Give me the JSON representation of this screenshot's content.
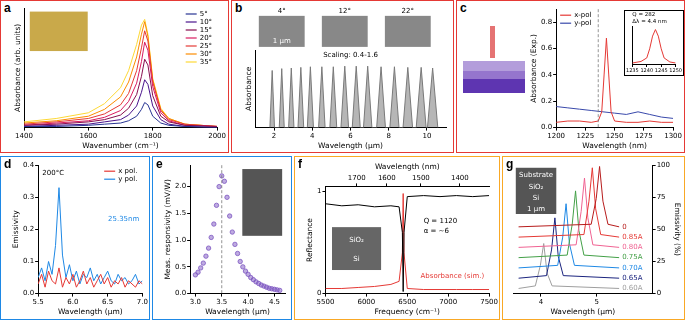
{
  "chart_data": [
    {
      "title": "a",
      "type": "line",
      "x_label": "Wavenumber (cm⁻¹)",
      "y_label": "Absorbance (arb. units)",
      "x": [
        1400,
        1500,
        1600,
        1650,
        1700,
        1725,
        1750,
        1765,
        1775,
        1785,
        1800,
        1825,
        1850,
        1900,
        2000
      ],
      "series": [
        {
          "name": "5°",
          "color": "#283593",
          "values": [
            0.01,
            0.01,
            0.02,
            0.03,
            0.04,
            0.06,
            0.1,
            0.16,
            0.22,
            0.2,
            0.1,
            0.04,
            0.02,
            0.01,
            0
          ]
        },
        {
          "name": "10°",
          "color": "#4a148c",
          "values": [
            0.01,
            0.02,
            0.03,
            0.05,
            0.07,
            0.11,
            0.19,
            0.31,
            0.42,
            0.38,
            0.19,
            0.07,
            0.03,
            0.01,
            0
          ]
        },
        {
          "name": "15°",
          "color": "#880e4f",
          "values": [
            0.02,
            0.03,
            0.05,
            0.07,
            0.11,
            0.17,
            0.29,
            0.45,
            0.6,
            0.55,
            0.28,
            0.1,
            0.05,
            0.02,
            0.01
          ]
        },
        {
          "name": "20°",
          "color": "#d81b60",
          "values": [
            0.02,
            0.04,
            0.06,
            0.09,
            0.15,
            0.23,
            0.39,
            0.58,
            0.75,
            0.68,
            0.36,
            0.13,
            0.06,
            0.02,
            0.01
          ]
        },
        {
          "name": "25°",
          "color": "#e53935",
          "values": [
            0.03,
            0.05,
            0.08,
            0.12,
            0.2,
            0.3,
            0.5,
            0.7,
            0.85,
            0.76,
            0.4,
            0.15,
            0.07,
            0.03,
            0.01
          ]
        },
        {
          "name": "30°",
          "color": "#fb8c00",
          "values": [
            0.04,
            0.06,
            0.1,
            0.16,
            0.27,
            0.4,
            0.62,
            0.82,
            0.93,
            0.8,
            0.42,
            0.16,
            0.08,
            0.03,
            0.01
          ]
        },
        {
          "name": "35°",
          "color": "#fdd835",
          "values": [
            0.05,
            0.08,
            0.13,
            0.21,
            0.35,
            0.5,
            0.73,
            0.9,
            0.95,
            0.82,
            0.43,
            0.17,
            0.08,
            0.03,
            0.01
          ]
        }
      ],
      "xlim": [
        1400,
        2000
      ],
      "xticks": [
        1400,
        1600,
        1800,
        2000
      ],
      "ylim": [
        0,
        1.05
      ],
      "tick_labels": "x",
      "grid": false,
      "legend": "upper right"
    },
    {
      "title": "b",
      "type": "area",
      "x_label": "Wavelength (μm)",
      "y_label": "Absorbance",
      "color": "#7a7a7a",
      "x": [
        1.78,
        1.9,
        2.02,
        2.27,
        2.4,
        2.53,
        2.76,
        2.9,
        3.04,
        3.25,
        3.4,
        3.55,
        3.74,
        3.9,
        4.06,
        4.33,
        4.5,
        4.67,
        4.92,
        5.1,
        5.28,
        5.5,
        5.7,
        5.9,
        6.09,
        6.3,
        6.51,
        6.68,
        6.9,
        7.12,
        7.37,
        7.6,
        7.83,
        8.06,
        8.3,
        8.54,
        8.75,
        9.0,
        9.25,
        9.44,
        9.7,
        9.96,
        10.03,
        10.3,
        10.57
      ],
      "values": [
        0,
        0.92,
        0,
        0,
        0.95,
        0,
        0,
        0.96,
        0,
        0,
        0.97,
        0,
        0,
        0.98,
        0,
        0,
        0.98,
        0,
        0,
        0.98,
        0,
        0,
        0.99,
        0,
        0,
        0.99,
        0,
        0,
        0.99,
        0,
        0,
        0.98,
        0,
        0,
        0.98,
        0,
        0,
        0.97,
        0,
        0,
        0.97,
        0,
        0,
        0.96,
        0
      ],
      "xlim": [
        1,
        11
      ],
      "xticks": [
        2,
        4,
        6,
        8,
        10
      ],
      "ylim": [
        0,
        1.25
      ],
      "tick_labels": "x",
      "grid": false,
      "annotations": [
        "4°",
        "12°",
        "22°",
        "1 μm",
        "Scaling: 0.4-1.6"
      ]
    },
    {
      "title": "c",
      "type": "line",
      "x_label": "Wavelength (nm)",
      "y_label": "Absorbance (Exp.)",
      "series": [
        {
          "name": "x-pol",
          "color": "#e53935",
          "x": [
            1200,
            1210,
            1220,
            1230,
            1236,
            1239,
            1241,
            1243,
            1245,
            1247,
            1250,
            1260,
            1270,
            1280,
            1290,
            1300
          ],
          "values": [
            0.04,
            0.05,
            0.05,
            0.04,
            0.05,
            0.12,
            0.4,
            0.68,
            0.4,
            0.12,
            0.05,
            0.04,
            0.04,
            0.05,
            0.04,
            0.04
          ]
        },
        {
          "name": "y-pol",
          "color": "#3949ab",
          "x": [
            1200,
            1210,
            1220,
            1230,
            1240,
            1250,
            1260,
            1270,
            1280,
            1290,
            1300
          ],
          "values": [
            0.16,
            0.15,
            0.14,
            0.13,
            0.12,
            0.11,
            0.1,
            0.12,
            0.1,
            0.08,
            0.07
          ]
        }
      ],
      "xlim": [
        1200,
        1300
      ],
      "xticks": [
        1200,
        1225,
        1250,
        1275,
        1300
      ],
      "ylim": [
        0,
        0.9
      ],
      "yticks": [
        {
          "value": 0,
          "label": "0.0"
        },
        0.2,
        0.4,
        0.6,
        0.8
      ],
      "grid": false,
      "legend": "upper left",
      "vline": 1236,
      "inset": {
        "type": "line",
        "color": "#e53935",
        "x": [
          1235,
          1238,
          1240,
          1241,
          1242,
          1243,
          1244,
          1245,
          1246,
          1248,
          1250
        ],
        "values": [
          0.02,
          0.05,
          0.12,
          0.3,
          0.55,
          0.68,
          0.55,
          0.3,
          0.12,
          0.04,
          0.02
        ],
        "xlim": [
          1235,
          1250
        ],
        "xticks": [
          1235,
          1240,
          1245,
          1250
        ],
        "ylim": [
          0,
          0.75
        ],
        "tick_labels": "x",
        "grid": false,
        "annotations": [
          "Q = 282",
          "Δλ = 4.4 nm"
        ]
      }
    },
    {
      "title": "d",
      "type": "line",
      "x_label": "Wavelength (μm)",
      "y_label": "Emissivity",
      "x": [
        5.5,
        5.55,
        5.6,
        5.65,
        5.7,
        5.75,
        5.8,
        5.85,
        5.9,
        5.95,
        6,
        6.05,
        6.1,
        6.15,
        6.2,
        6.25,
        6.3,
        6.35,
        6.4,
        6.45,
        6.5,
        6.55,
        6.6,
        6.65,
        6.7,
        6.75,
        6.8,
        6.85,
        6.9,
        6.95,
        7
      ],
      "series": [
        {
          "name": "x pol.",
          "color": "#e53935",
          "values": [
            0.03,
            0.06,
            0.02,
            0.07,
            0.04,
            0.03,
            0.08,
            0.02,
            0.05,
            0.03,
            0.06,
            0.02,
            0.04,
            0.07,
            0.03,
            0.05,
            0.02,
            0.04,
            0.06,
            0.03,
            0.05,
            0.02,
            0.04,
            0.03,
            0.05,
            0.02,
            0.04,
            0.03,
            0.02,
            0.04,
            0.03
          ]
        },
        {
          "name": "y pol.",
          "color": "#1e88e5",
          "values": [
            0.05,
            0.08,
            0.04,
            0.1,
            0.06,
            0.15,
            0.33,
            0.12,
            0.05,
            0.09,
            0.04,
            0.07,
            0.03,
            0.06,
            0.05,
            0.08,
            0.04,
            0.06,
            0.03,
            0.05,
            0.07,
            0.04,
            0.03,
            0.06,
            0.04,
            0.05,
            0.03,
            0.04,
            0.06,
            0.03,
            0.04
          ]
        }
      ],
      "xlim": [
        5.5,
        7
      ],
      "xticks": [
        5.5,
        {
          "value": 6,
          "label": "6.0"
        },
        6.5,
        {
          "value": 7,
          "label": "7.0"
        }
      ],
      "ylim": [
        0,
        0.4
      ],
      "yticks": [
        {
          "value": 0,
          "label": "0.0"
        },
        0.1,
        0.2,
        0.3,
        0.4
      ],
      "grid": false,
      "legend": "upper right",
      "annotations": [
        "200°C",
        "25.35nm"
      ]
    },
    {
      "title": "e",
      "type": "scatter",
      "marker": "circle",
      "color": "#7e57c2",
      "x_label": "Wavelength (μm)",
      "y_label": "Meas. responsivity (mV/W)",
      "x": [
        3.0,
        3.05,
        3.1,
        3.15,
        3.2,
        3.25,
        3.3,
        3.35,
        3.4,
        3.45,
        3.5,
        3.55,
        3.6,
        3.65,
        3.7,
        3.75,
        3.8,
        3.85,
        3.9,
        3.95,
        4.0,
        4.05,
        4.1,
        4.15,
        4.2,
        4.25,
        4.3,
        4.35,
        4.4,
        4.45,
        4.5,
        4.55,
        4.6
      ],
      "values": [
        0.35,
        0.4,
        0.48,
        0.57,
        0.7,
        0.85,
        1.05,
        1.3,
        1.65,
        2.0,
        2.2,
        2.1,
        1.8,
        1.45,
        1.15,
        0.92,
        0.75,
        0.6,
        0.5,
        0.42,
        0.36,
        0.3,
        0.26,
        0.22,
        0.19,
        0.16,
        0.14,
        0.12,
        0.1,
        0.09,
        0.08,
        0.07,
        0.06
      ],
      "xlim": [
        2.9,
        4.7
      ],
      "xticks": [
        {
          "value": 3,
          "label": "3.0"
        },
        3.5,
        {
          "value": 4,
          "label": "4.0"
        },
        4.5
      ],
      "ylim": [
        0,
        2.4
      ],
      "yticks": [
        {
          "value": 0,
          "label": "0.0"
        },
        0.5,
        {
          "value": 1,
          "label": "1.0"
        },
        1.5,
        {
          "value": 2,
          "label": "2.0"
        }
      ],
      "grid": false,
      "vline": 3.5
    },
    {
      "title": "f",
      "type": "line",
      "x_label": "Frequency (cm⁻¹)",
      "x2_label": "Wavelength (nm)",
      "y_label": "Reflectance",
      "x": [
        5500,
        5700,
        5900,
        6100,
        6300,
        6400,
        6440,
        6450,
        6460,
        6500,
        6700,
        6900,
        7100,
        7300,
        7500
      ],
      "series": [
        {
          "color": "#000000",
          "values": [
            0.88,
            0.86,
            0.87,
            0.85,
            0.86,
            0.85,
            0.6,
            0.02,
            0.6,
            0.95,
            0.96,
            0.95,
            0.96,
            0.95,
            0.96
          ]
        },
        {
          "color": "#e53935",
          "values": [
            0.05,
            0.05,
            0.06,
            0.07,
            0.09,
            0.12,
            0.4,
            0.98,
            0.4,
            0.05,
            0.04,
            0.04,
            0.04,
            0.04,
            0.04
          ]
        }
      ],
      "xlim": [
        5500,
        7500
      ],
      "xticks": [
        5500,
        6000,
        6500,
        7000,
        7500
      ],
      "x2ticks": [
        1700,
        1600,
        1500,
        1400
      ],
      "ylim": [
        0,
        1.05
      ],
      "yticks": [
        0,
        1
      ],
      "grid": false,
      "annotations": [
        "Q = 1120",
        "α = ~6",
        "Absorbance (sim.)",
        "SiO₂",
        "Si"
      ]
    },
    {
      "title": "g",
      "type": "line",
      "x_label": "Wavelength (μm)",
      "y_label": "Emissivity (%)",
      "series": [
        {
          "name": "0",
          "color": "#b71c1c",
          "axis": "y2",
          "x": [
            3.6,
            4.9,
            4.99,
            5.05,
            5.11,
            5.2,
            5.4
          ],
          "values": [
            52,
            54,
            74,
            99,
            72,
            54,
            52
          ]
        },
        {
          "name": "0.85A",
          "color": "#e53935",
          "axis": "y2",
          "x": [
            3.6,
            4.77,
            4.86,
            4.92,
            4.98,
            5.07,
            5.4
          ],
          "values": [
            44,
            46,
            72,
            98,
            66,
            46,
            44
          ]
        },
        {
          "name": "0.80A",
          "color": "#f06292",
          "axis": "y2",
          "x": [
            3.6,
            4.63,
            4.72,
            4.78,
            4.84,
            4.93,
            5.4
          ],
          "values": [
            36,
            38,
            64,
            90,
            59,
            38,
            36
          ]
        },
        {
          "name": "0.75A",
          "color": "#43a047",
          "axis": "y2",
          "x": [
            3.6,
            4.47,
            4.56,
            4.62,
            4.68,
            4.77,
            5.4
          ],
          "values": [
            28,
            30,
            54,
            80,
            49,
            30,
            28
          ]
        },
        {
          "name": "0.70A",
          "color": "#1e88e5",
          "axis": "y2",
          "x": [
            3.6,
            4.3,
            4.39,
            4.45,
            4.51,
            4.6,
            5.4
          ],
          "values": [
            20,
            22,
            44,
            70,
            39,
            22,
            20
          ]
        },
        {
          "name": "0.65A",
          "color": "#1a237e",
          "axis": "y2",
          "x": [
            3.6,
            4.1,
            4.19,
            4.25,
            4.31,
            4.4,
            5.4
          ],
          "values": [
            12,
            14,
            34,
            59,
            29,
            14,
            12
          ]
        },
        {
          "name": "0.60A",
          "color": "#9e9e9e",
          "axis": "y2",
          "x": [
            3.6,
            3.9,
            3.99,
            4.05,
            4.11,
            4.2,
            5.4
          ],
          "values": [
            4,
            6,
            22,
            39,
            16,
            6,
            4
          ]
        }
      ],
      "xlim": [
        3.5,
        6
      ],
      "xticks": [
        4,
        5
      ],
      "y2lim": [
        0,
        100
      ],
      "y2ticks": [
        0,
        25,
        50,
        75,
        100
      ],
      "grid": false,
      "legend": "right",
      "annotations": [
        "Substrate",
        "SiO₂",
        "Si",
        "1 μm"
      ]
    }
  ]
}
